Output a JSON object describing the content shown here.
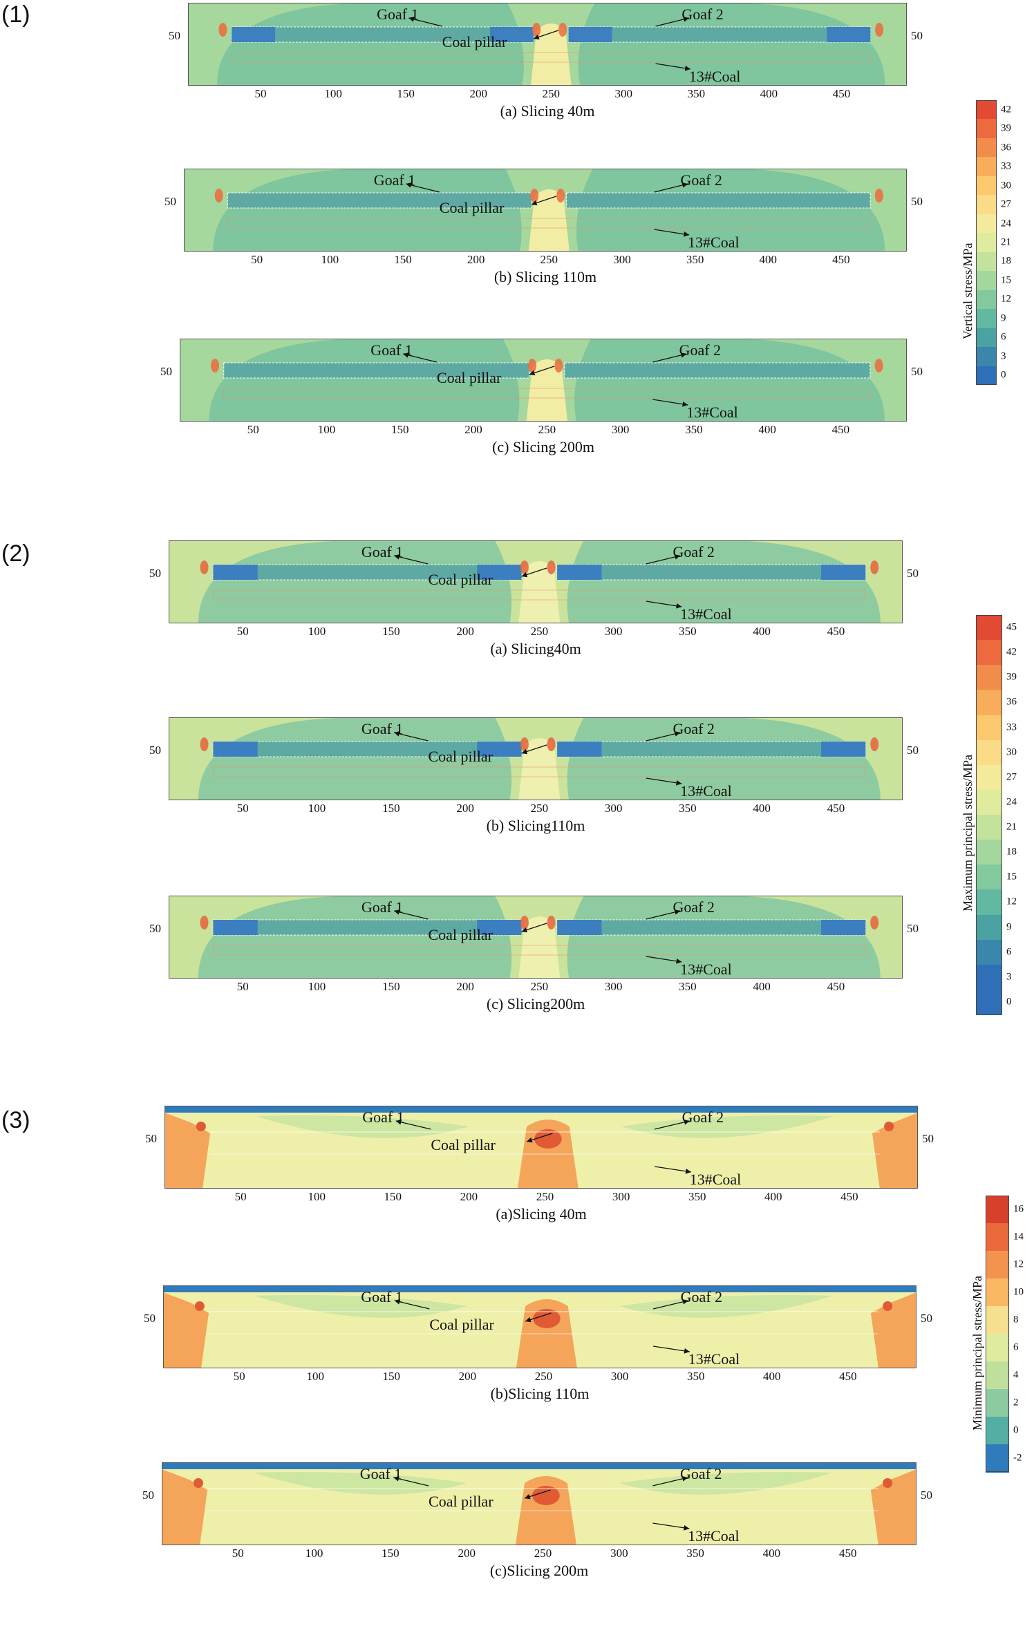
{
  "groups": [
    {
      "label": "(1)",
      "colorbar": {
        "title": "Vertical stress/MPa",
        "ticks": [
          "42",
          "39",
          "36",
          "33",
          "30",
          "27",
          "24",
          "21",
          "18",
          "15",
          "12",
          "9",
          "6",
          "3",
          "0"
        ],
        "colors": [
          "#e34a33",
          "#ec6a3e",
          "#f28c4a",
          "#f7ad5a",
          "#fbc86e",
          "#fbdc86",
          "#f3ea9c",
          "#dfeb9d",
          "#c3e39d",
          "#a3d79d",
          "#82c99d",
          "#62b8a1",
          "#4aa2a3",
          "#3a86ac",
          "#2f6fb7"
        ]
      },
      "panels": [
        {
          "caption": "(a) Slicing 40m",
          "goaf1": "Goaf 1",
          "goaf2": "Goaf 2",
          "pillar": "Coal pillar",
          "coal": "13#Coal",
          "ylabel": "50",
          "xticks": [
            "50",
            "100",
            "150",
            "200",
            "250",
            "300",
            "350",
            "400",
            "450"
          ]
        },
        {
          "caption": "(b) Slicing 110m",
          "goaf1": "Goaf 1",
          "goaf2": "Goaf 2",
          "pillar": "Coal pillar",
          "coal": "13#Coal",
          "ylabel": "50",
          "xticks": [
            "50",
            "100",
            "150",
            "200",
            "250",
            "300",
            "350",
            "400",
            "450"
          ]
        },
        {
          "caption": "(c) Slicing 200m",
          "goaf1": "Goaf 1",
          "goaf2": "Goaf 2",
          "pillar": "Coal pillar",
          "coal": "13#Coal",
          "ylabel": "50",
          "xticks": [
            "50",
            "100",
            "150",
            "200",
            "250",
            "300",
            "350",
            "400",
            "450"
          ]
        }
      ]
    },
    {
      "label": "(2)",
      "colorbar": {
        "title": "Maximum principal stress/MPa",
        "ticks": [
          "45",
          "42",
          "39",
          "36",
          "33",
          "30",
          "27",
          "24",
          "21",
          "18",
          "15",
          "12",
          "9",
          "6",
          "3",
          "0"
        ],
        "colors": [
          "#e34a33",
          "#ec6a3e",
          "#f28c4a",
          "#f7ad5a",
          "#fbc86e",
          "#fbdc86",
          "#f3ea9c",
          "#dfeb9d",
          "#c3e39d",
          "#a3d79d",
          "#82c99d",
          "#62b8a1",
          "#4aa2a3",
          "#3a86ac",
          "#2f6fb7",
          "#2f6fb7"
        ]
      },
      "panels": [
        {
          "caption": "(a) Slicing40m",
          "goaf1": "Goaf 1",
          "goaf2": "Goaf 2",
          "pillar": "Coal pillar",
          "coal": "13#Coal",
          "ylabel": "50",
          "xticks": [
            "50",
            "100",
            "150",
            "200",
            "250",
            "300",
            "350",
            "400",
            "450"
          ]
        },
        {
          "caption": "(b) Slicing110m",
          "goaf1": "Goaf 1",
          "goaf2": "Goaf 2",
          "pillar": "Coal pillar",
          "coal": "13#Coal",
          "ylabel": "50",
          "xticks": [
            "50",
            "100",
            "150",
            "200",
            "250",
            "300",
            "350",
            "400",
            "450"
          ]
        },
        {
          "caption": "(c) Slicing200m",
          "goaf1": "Goaf 1",
          "goaf2": "Goaf 2",
          "pillar": "Coal pillar",
          "coal": "13#Coal",
          "ylabel": "50",
          "xticks": [
            "50",
            "100",
            "150",
            "200",
            "250",
            "300",
            "350",
            "400",
            "450"
          ]
        }
      ]
    },
    {
      "label": "(3)",
      "colorbar": {
        "title": "Minimum principal stress/MPa",
        "ticks": [
          "16",
          "14",
          "12",
          "10",
          "8",
          "6",
          "4",
          "2",
          "0",
          "-2"
        ],
        "colors": [
          "#d7402b",
          "#eb6a3c",
          "#f4934f",
          "#fab865",
          "#f5e08f",
          "#dfeca0",
          "#bfe09d",
          "#8ccba0",
          "#55aea4",
          "#2f7bbb"
        ]
      },
      "panels": [
        {
          "caption": "(a)Slicing 40m",
          "goaf1": "Goaf 1",
          "goaf2": "Goaf 2",
          "pillar": "Coal pillar",
          "coal": "13#Coal",
          "ylabel": "50",
          "xticks": [
            "50",
            "100",
            "150",
            "200",
            "250",
            "300",
            "350",
            "400",
            "450"
          ]
        },
        {
          "caption": "(b)Slicing 110m",
          "goaf1": "Goaf 1",
          "goaf2": "Goaf 2",
          "pillar": "Coal pillar",
          "coal": "13#Coal",
          "ylabel": "50",
          "xticks": [
            "50",
            "100",
            "150",
            "200",
            "250",
            "300",
            "350",
            "400",
            "450"
          ]
        },
        {
          "caption": "(c)Slicing 200m",
          "goaf1": "Goaf 1",
          "goaf2": "Goaf 2",
          "pillar": "Coal pillar",
          "coal": "13#Coal",
          "ylabel": "50",
          "xticks": [
            "50",
            "100",
            "150",
            "200",
            "250",
            "300",
            "350",
            "400",
            "450"
          ]
        }
      ]
    }
  ]
}
